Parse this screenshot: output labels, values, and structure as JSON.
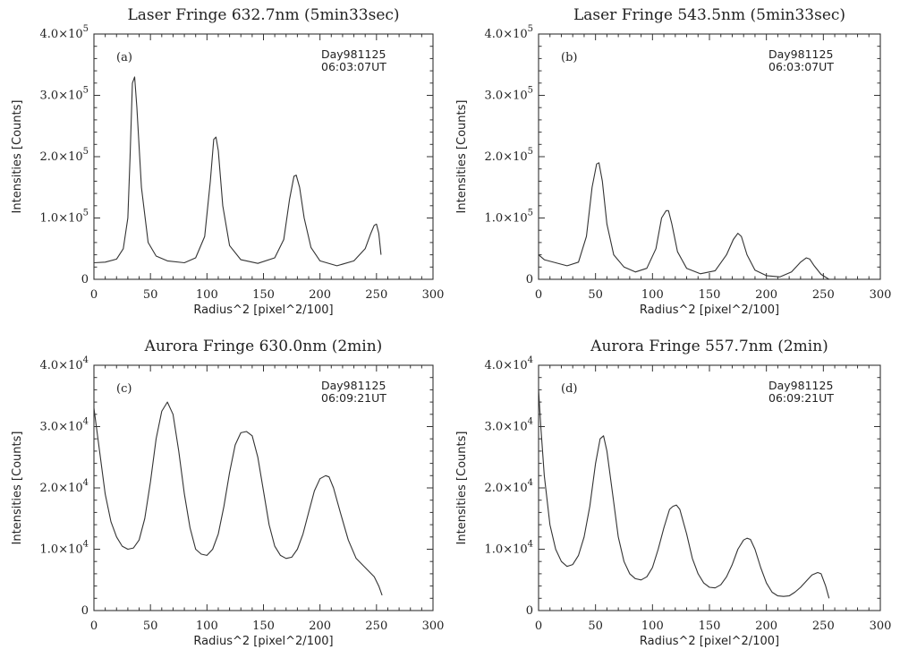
{
  "chart_data": [
    {
      "type": "line",
      "title": "Laser Fringe  632.7nm (5min33sec)",
      "panel_label": "(a)",
      "annotation": [
        "Day981125",
        "06:03:07UT"
      ],
      "xlabel": "Radius^2 [pixel^2/100]",
      "ylabel": "Intensities [Counts]",
      "xlim": [
        0,
        300
      ],
      "ylim": [
        0,
        400000
      ],
      "xticks": [
        "0",
        "50",
        "100",
        "150",
        "200",
        "250",
        "300"
      ],
      "yticks": [
        {
          "value": 0,
          "mantissa": "0",
          "exp": ""
        },
        {
          "value": 100000,
          "mantissa": "1.0×10",
          "exp": "5"
        },
        {
          "value": 200000,
          "mantissa": "2.0×10",
          "exp": "5"
        },
        {
          "value": 300000,
          "mantissa": "3.0×10",
          "exp": "5"
        },
        {
          "value": 400000,
          "mantissa": "4.0×10",
          "exp": "5"
        }
      ],
      "series": [
        {
          "x": [
            0,
            10,
            20,
            26,
            30,
            32,
            34,
            36,
            38,
            42,
            48,
            55,
            65,
            80,
            90,
            98,
            103,
            106,
            108,
            110,
            114,
            120,
            130,
            145,
            160,
            168,
            173,
            177,
            179,
            182,
            186,
            192,
            200,
            215,
            230,
            240,
            245,
            248,
            250,
            252,
            254
          ],
          "y": [
            27000,
            28000,
            33000,
            50000,
            100000,
            200000,
            320000,
            330000,
            280000,
            150000,
            60000,
            38000,
            30000,
            27000,
            35000,
            70000,
            160000,
            228000,
            232000,
            210000,
            120000,
            55000,
            32000,
            26000,
            35000,
            65000,
            130000,
            168000,
            170000,
            150000,
            100000,
            52000,
            30000,
            22000,
            30000,
            50000,
            75000,
            88000,
            90000,
            75000,
            40000
          ]
        }
      ]
    },
    {
      "type": "line",
      "title": "Laser Fringe  543.5nm (5min33sec)",
      "panel_label": "(b)",
      "annotation": [
        "Day981125",
        "06:03:07UT"
      ],
      "xlabel": "Radius^2 [pixel^2/100]",
      "ylabel": "Intensities [Counts]",
      "xlim": [
        0,
        300
      ],
      "ylim": [
        0,
        400000
      ],
      "xticks": [
        "0",
        "50",
        "100",
        "150",
        "200",
        "250",
        "300"
      ],
      "yticks": [
        {
          "value": 0,
          "mantissa": "0",
          "exp": ""
        },
        {
          "value": 100000,
          "mantissa": "1.0×10",
          "exp": "5"
        },
        {
          "value": 200000,
          "mantissa": "2.0×10",
          "exp": "5"
        },
        {
          "value": 300000,
          "mantissa": "3.0×10",
          "exp": "5"
        },
        {
          "value": 400000,
          "mantissa": "4.0×10",
          "exp": "5"
        }
      ],
      "series": [
        {
          "x": [
            0,
            5,
            15,
            25,
            35,
            42,
            47,
            51,
            53,
            56,
            60,
            66,
            75,
            85,
            95,
            103,
            108,
            112,
            114,
            117,
            122,
            130,
            142,
            155,
            165,
            171,
            175,
            178,
            183,
            190,
            200,
            212,
            222,
            230,
            235,
            238,
            242,
            248,
            255
          ],
          "y": [
            40000,
            32000,
            27000,
            22000,
            28000,
            70000,
            150000,
            188000,
            190000,
            160000,
            90000,
            40000,
            20000,
            12000,
            18000,
            50000,
            100000,
            112000,
            112000,
            90000,
            45000,
            18000,
            9000,
            14000,
            40000,
            65000,
            75000,
            70000,
            40000,
            15000,
            6000,
            4000,
            12000,
            28000,
            35000,
            33000,
            22000,
            8000,
            0
          ]
        }
      ]
    },
    {
      "type": "line",
      "title": "Aurora Fringe 630.0nm (2min)",
      "panel_label": "(c)",
      "annotation": [
        "Day981125",
        "06:09:21UT"
      ],
      "xlabel": "Radius^2 [pixel^2/100]",
      "ylabel": "Intensities [Counts]",
      "xlim": [
        0,
        300
      ],
      "ylim": [
        0,
        40000
      ],
      "xticks": [
        "0",
        "50",
        "100",
        "150",
        "200",
        "250",
        "300"
      ],
      "yticks": [
        {
          "value": 0,
          "mantissa": "0",
          "exp": ""
        },
        {
          "value": 10000,
          "mantissa": "1.0×10",
          "exp": "4"
        },
        {
          "value": 20000,
          "mantissa": "2.0×10",
          "exp": "4"
        },
        {
          "value": 30000,
          "mantissa": "3.0×10",
          "exp": "4"
        },
        {
          "value": 40000,
          "mantissa": "4.0×10",
          "exp": "4"
        }
      ],
      "series": [
        {
          "x": [
            0,
            5,
            10,
            15,
            20,
            25,
            30,
            35,
            40,
            45,
            50,
            55,
            60,
            65,
            70,
            75,
            80,
            85,
            90,
            95,
            100,
            105,
            110,
            115,
            120,
            125,
            130,
            135,
            140,
            145,
            150,
            155,
            160,
            165,
            170,
            175,
            180,
            185,
            190,
            195,
            200,
            205,
            208,
            212,
            218,
            225,
            232,
            240,
            248,
            252,
            255
          ],
          "y": [
            33000,
            26000,
            19000,
            14500,
            12000,
            10500,
            10000,
            10200,
            11500,
            15000,
            21000,
            28000,
            32500,
            34000,
            32000,
            26000,
            19000,
            13500,
            10000,
            9200,
            9000,
            10000,
            12500,
            17000,
            22500,
            27000,
            29000,
            29200,
            28500,
            25000,
            19500,
            14000,
            10500,
            9000,
            8500,
            8700,
            10000,
            12500,
            16000,
            19500,
            21500,
            22000,
            21800,
            20000,
            16000,
            11500,
            8500,
            7000,
            5500,
            4000,
            2500
          ]
        }
      ]
    },
    {
      "type": "line",
      "title": "Aurora Fringe 557.7nm (2min)",
      "panel_label": "(d)",
      "annotation": [
        "Day981125",
        "06:09:21UT"
      ],
      "xlabel": "Radius^2 [pixel^2/100]",
      "ylabel": "Intensities [Counts]",
      "xlim": [
        0,
        300
      ],
      "ylim": [
        0,
        40000
      ],
      "xticks": [
        "0",
        "50",
        "100",
        "150",
        "200",
        "250",
        "300"
      ],
      "yticks": [
        {
          "value": 0,
          "mantissa": "0",
          "exp": ""
        },
        {
          "value": 10000,
          "mantissa": "1.0×10",
          "exp": "4"
        },
        {
          "value": 20000,
          "mantissa": "2.0×10",
          "exp": "4"
        },
        {
          "value": 30000,
          "mantissa": "3.0×10",
          "exp": "4"
        },
        {
          "value": 40000,
          "mantissa": "4.0×10",
          "exp": "4"
        }
      ],
      "series": [
        {
          "x": [
            0,
            2,
            5,
            10,
            15,
            20,
            25,
            30,
            35,
            40,
            45,
            50,
            54,
            57,
            60,
            65,
            70,
            75,
            80,
            85,
            90,
            95,
            100,
            105,
            110,
            115,
            118,
            121,
            124,
            130,
            135,
            140,
            145,
            150,
            155,
            160,
            165,
            170,
            175,
            180,
            183,
            186,
            190,
            195,
            200,
            205,
            210,
            215,
            220,
            225,
            230,
            235,
            240,
            245,
            248,
            252,
            255
          ],
          "y": [
            36000,
            30000,
            22000,
            14000,
            10000,
            8000,
            7200,
            7500,
            9000,
            12000,
            17000,
            24000,
            28000,
            28500,
            26000,
            19000,
            12000,
            8000,
            6000,
            5200,
            5000,
            5500,
            7000,
            10000,
            13500,
            16500,
            17000,
            17200,
            16500,
            12500,
            8500,
            6000,
            4500,
            3800,
            3700,
            4200,
            5500,
            7500,
            10000,
            11500,
            11800,
            11600,
            10000,
            7000,
            4500,
            3000,
            2400,
            2300,
            2400,
            3000,
            3800,
            4800,
            5800,
            6200,
            6000,
            4000,
            2000
          ]
        }
      ]
    }
  ]
}
